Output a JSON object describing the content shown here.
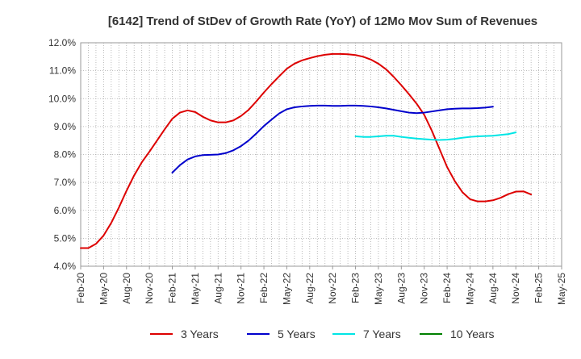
{
  "chart_data": {
    "type": "line",
    "title": "[6142]  Trend of StDev of Growth Rate (YoY) of 12Mo Mov Sum of Revenues",
    "xlabel": "",
    "ylabel": "",
    "ylim": [
      4.0,
      12.0
    ],
    "yticks": [
      4.0,
      5.0,
      6.0,
      7.0,
      8.0,
      9.0,
      10.0,
      11.0,
      12.0
    ],
    "ytick_labels": [
      "4.0%",
      "5.0%",
      "6.0%",
      "7.0%",
      "8.0%",
      "9.0%",
      "10.0%",
      "11.0%",
      "12.0%"
    ],
    "x_tick_labels": [
      "Feb-20",
      "May-20",
      "Aug-20",
      "Nov-20",
      "Feb-21",
      "May-21",
      "Aug-21",
      "Nov-21",
      "Feb-22",
      "May-22",
      "Aug-22",
      "Nov-22",
      "Feb-23",
      "May-23",
      "Aug-23",
      "Nov-23",
      "Feb-24",
      "May-24",
      "Aug-24",
      "Nov-24",
      "Feb-25",
      "May-25"
    ],
    "x_start": "Feb-20",
    "grid": true,
    "legend_position": "bottom",
    "series": [
      {
        "name": "3 Years",
        "color": "#dd0000",
        "start_index": 0,
        "values": [
          4.65,
          4.65,
          4.8,
          5.1,
          5.55,
          6.1,
          6.7,
          7.25,
          7.72,
          8.1,
          8.5,
          8.9,
          9.28,
          9.5,
          9.58,
          9.52,
          9.35,
          9.22,
          9.15,
          9.15,
          9.22,
          9.38,
          9.6,
          9.9,
          10.22,
          10.52,
          10.8,
          11.07,
          11.25,
          11.37,
          11.45,
          11.52,
          11.57,
          11.6,
          11.6,
          11.59,
          11.56,
          11.5,
          11.4,
          11.25,
          11.05,
          10.78,
          10.48,
          10.16,
          9.82,
          9.42,
          8.85,
          8.2,
          7.55,
          7.05,
          6.65,
          6.4,
          6.32,
          6.32,
          6.36,
          6.45,
          6.58,
          6.67,
          6.68,
          6.57
        ]
      },
      {
        "name": "5 Years",
        "color": "#0000cc",
        "start_index": 12,
        "values": [
          7.35,
          7.62,
          7.82,
          7.93,
          7.98,
          7.99,
          8.0,
          8.05,
          8.15,
          8.3,
          8.5,
          8.75,
          9.02,
          9.25,
          9.47,
          9.62,
          9.69,
          9.72,
          9.74,
          9.75,
          9.75,
          9.74,
          9.74,
          9.75,
          9.75,
          9.74,
          9.72,
          9.69,
          9.65,
          9.6,
          9.55,
          9.5,
          9.48,
          9.5,
          9.54,
          9.58,
          9.62,
          9.64,
          9.65,
          9.65,
          9.66,
          9.68,
          9.71
        ]
      },
      {
        "name": "7 Years",
        "color": "#00e5e5",
        "start_index": 36,
        "values": [
          8.65,
          8.63,
          8.63,
          8.65,
          8.67,
          8.67,
          8.63,
          8.6,
          8.57,
          8.55,
          8.53,
          8.52,
          8.53,
          8.56,
          8.6,
          8.63,
          8.65,
          8.66,
          8.67,
          8.7,
          8.73,
          8.79
        ]
      },
      {
        "name": "10 Years",
        "color": "#008000",
        "start_index": 0,
        "values": []
      }
    ]
  }
}
